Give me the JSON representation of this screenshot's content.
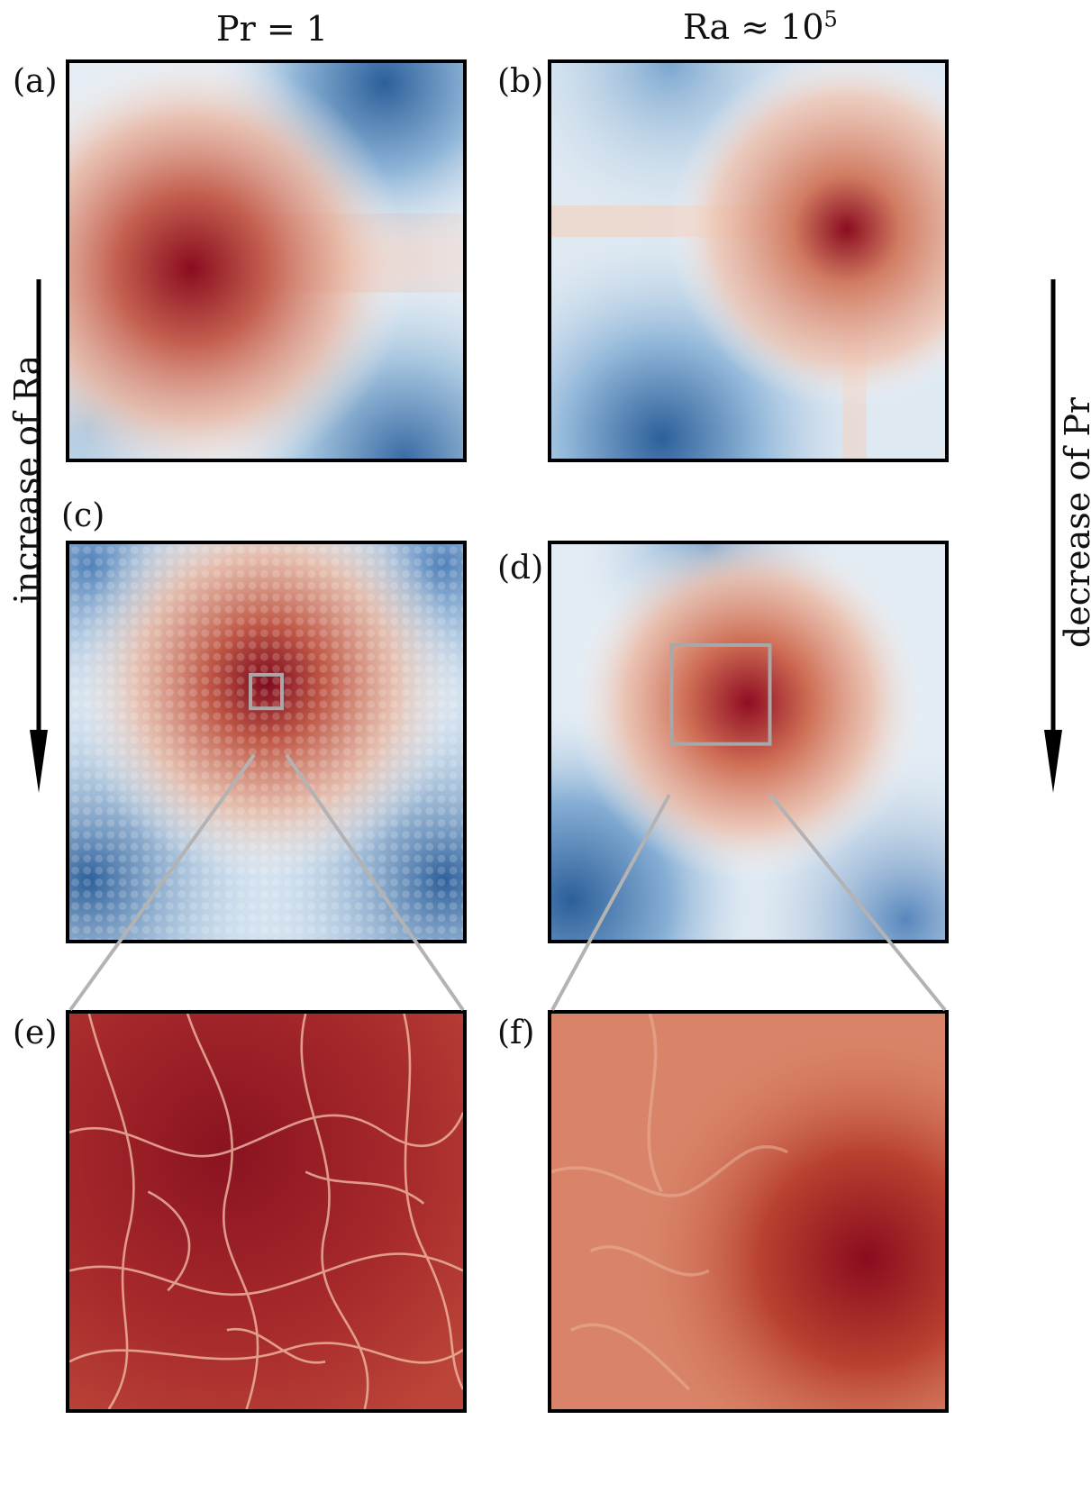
{
  "header": {
    "left_title": "Pr = 1",
    "right_title_base": "Ra ≈ 10",
    "right_title_exp": "5"
  },
  "panels": [
    {
      "label": "(a)",
      "field": "temperature"
    },
    {
      "label": "(b)",
      "field": "temperature"
    },
    {
      "label": "(c)",
      "field": "temperature"
    },
    {
      "label": "(d)",
      "field": "temperature"
    },
    {
      "label": "(e)",
      "field": "zoom of (c)"
    },
    {
      "label": "(f)",
      "field": "zoom of (d)"
    }
  ],
  "annotations": {
    "left_arrow": "increase of Ra",
    "right_arrow": "decrease of Pr"
  },
  "colors": {
    "hot": "#8a0c1f",
    "warm": "#d98468",
    "neutral": "#f5f3f2",
    "cool": "#a7c6df",
    "cold": "#2c5f9a",
    "zoom_lines": "#b3b3b3"
  }
}
